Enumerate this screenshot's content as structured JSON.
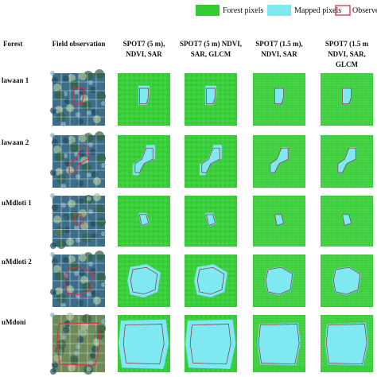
{
  "legend": {
    "items": [
      "Forest pixels",
      "Mapped pixels",
      "Observed Gap"
    ]
  },
  "table": {
    "headers": [
      [
        "Forest"
      ],
      [
        "Field observation"
      ],
      [
        "SPOT7 (5 m),",
        "NDVI, SAR"
      ],
      [
        "SPOT7 (5 m) NDVI,",
        "SAR, GLCM"
      ],
      [
        "SPOT7 (1.5 m),",
        "NDVI, SAR"
      ],
      [
        "SPOT7 (1.5 m",
        "NDVI, SAR,",
        "GLCM"
      ]
    ],
    "rows": [
      "lawaan 1",
      "lawaan 2",
      "uMdloti 1",
      "uMdloti 2",
      "uMdoni"
    ]
  }
}
